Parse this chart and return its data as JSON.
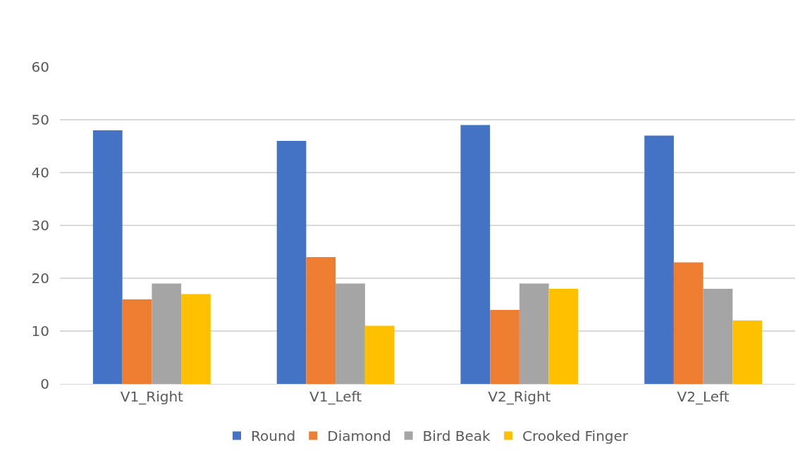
{
  "chart_data": {
    "type": "bar",
    "categories": [
      "V1_Right",
      "V1_Left",
      "V2_Right",
      "V2_Left"
    ],
    "series": [
      {
        "name": "Round",
        "color": "#4472c4",
        "values": [
          48,
          46,
          49,
          47
        ]
      },
      {
        "name": "Diamond",
        "color": "#ed7d31",
        "values": [
          16,
          24,
          14,
          23
        ]
      },
      {
        "name": "Bird Beak",
        "color": "#a5a5a5",
        "values": [
          19,
          19,
          19,
          18
        ]
      },
      {
        "name": "Crooked Finger",
        "color": "#ffc000",
        "values": [
          17,
          11,
          18,
          12
        ]
      }
    ],
    "ylim": [
      0,
      60
    ],
    "yticks": [
      0,
      10,
      20,
      30,
      40,
      50,
      60
    ],
    "grid": "y",
    "legend": "bottom"
  }
}
